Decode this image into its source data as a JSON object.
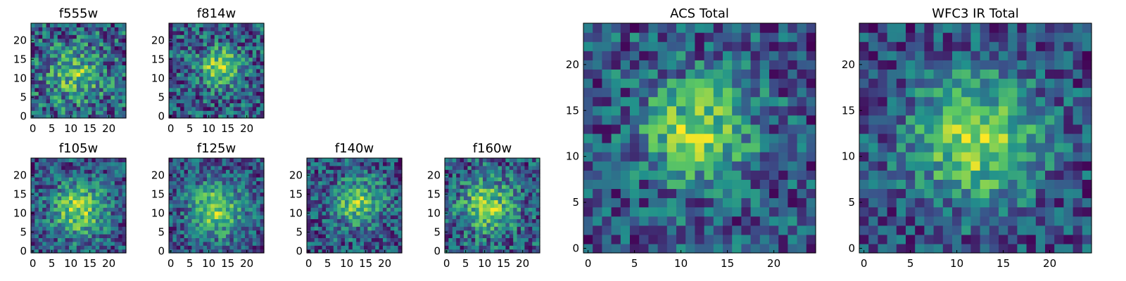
{
  "chart_data": [
    {
      "type": "heatmap",
      "title": "f555w",
      "xticks": [
        0,
        5,
        10,
        15,
        20
      ],
      "yticks": [
        0,
        5,
        10,
        15,
        20
      ],
      "xlim": [
        0,
        24
      ],
      "ylim": [
        0,
        24
      ],
      "grid_size": 25,
      "peak": [
        11,
        11
      ],
      "sigma": 5,
      "amplitude": 0.45,
      "noise": 0.55,
      "seed": 11
    },
    {
      "type": "heatmap",
      "title": "f814w",
      "xticks": [
        0,
        5,
        10,
        15,
        20
      ],
      "yticks": [
        0,
        5,
        10,
        15,
        20
      ],
      "xlim": [
        0,
        24
      ],
      "ylim": [
        0,
        24
      ],
      "grid_size": 25,
      "peak": [
        13,
        13
      ],
      "sigma": 3.5,
      "amplitude": 0.65,
      "noise": 0.5,
      "seed": 23
    },
    {
      "type": "heatmap",
      "title": "f105w",
      "xticks": [
        0,
        5,
        10,
        15,
        20
      ],
      "yticks": [
        0,
        5,
        10,
        15,
        20
      ],
      "xlim": [
        0,
        24
      ],
      "ylim": [
        0,
        24
      ],
      "grid_size": 25,
      "peak": [
        12,
        11
      ],
      "sigma": 5,
      "amplitude": 0.6,
      "noise": 0.4,
      "seed": 37
    },
    {
      "type": "heatmap",
      "title": "f125w",
      "xticks": [
        0,
        5,
        10,
        15,
        20
      ],
      "yticks": [
        0,
        5,
        10,
        15,
        20
      ],
      "xlim": [
        0,
        24
      ],
      "ylim": [
        0,
        24
      ],
      "grid_size": 25,
      "peak": [
        12,
        11
      ],
      "sigma": 5,
      "amplitude": 0.6,
      "noise": 0.4,
      "seed": 41
    },
    {
      "type": "heatmap",
      "title": "f140w",
      "xticks": [
        0,
        5,
        10,
        15,
        20
      ],
      "yticks": [
        0,
        5,
        10,
        15,
        20
      ],
      "xlim": [
        0,
        24
      ],
      "ylim": [
        0,
        24
      ],
      "grid_size": 25,
      "peak": [
        13,
        13
      ],
      "sigma": 4.5,
      "amplitude": 0.55,
      "noise": 0.45,
      "seed": 53
    },
    {
      "type": "heatmap",
      "title": "f160w",
      "xticks": [
        0,
        5,
        10,
        15,
        20
      ],
      "yticks": [
        0,
        5,
        10,
        15,
        20
      ],
      "xlim": [
        0,
        24
      ],
      "ylim": [
        0,
        24
      ],
      "grid_size": 25,
      "peak": [
        11,
        12
      ],
      "sigma": 5,
      "amplitude": 0.55,
      "noise": 0.45,
      "seed": 67
    },
    {
      "type": "heatmap",
      "title": "ACS Total",
      "xticks": [
        0,
        5,
        10,
        15,
        20
      ],
      "yticks": [
        0,
        5,
        10,
        15,
        20
      ],
      "xlim": [
        0,
        24
      ],
      "ylim": [
        0,
        24
      ],
      "grid_size": 25,
      "peak": [
        12,
        13
      ],
      "sigma": 4,
      "amplitude": 0.6,
      "noise": 0.45,
      "seed": 71
    },
    {
      "type": "heatmap",
      "title": "WFC3 IR Total",
      "xticks": [
        0,
        5,
        10,
        15,
        20
      ],
      "yticks": [
        0,
        5,
        10,
        15,
        20
      ],
      "xlim": [
        0,
        24
      ],
      "ylim": [
        0,
        24
      ],
      "grid_size": 25,
      "peak": [
        12,
        12
      ],
      "sigma": 5,
      "amplitude": 0.6,
      "noise": 0.35,
      "seed": 89
    }
  ],
  "colormap": [
    "#440154",
    "#3b528b",
    "#21918c",
    "#5ec962",
    "#fde725"
  ]
}
